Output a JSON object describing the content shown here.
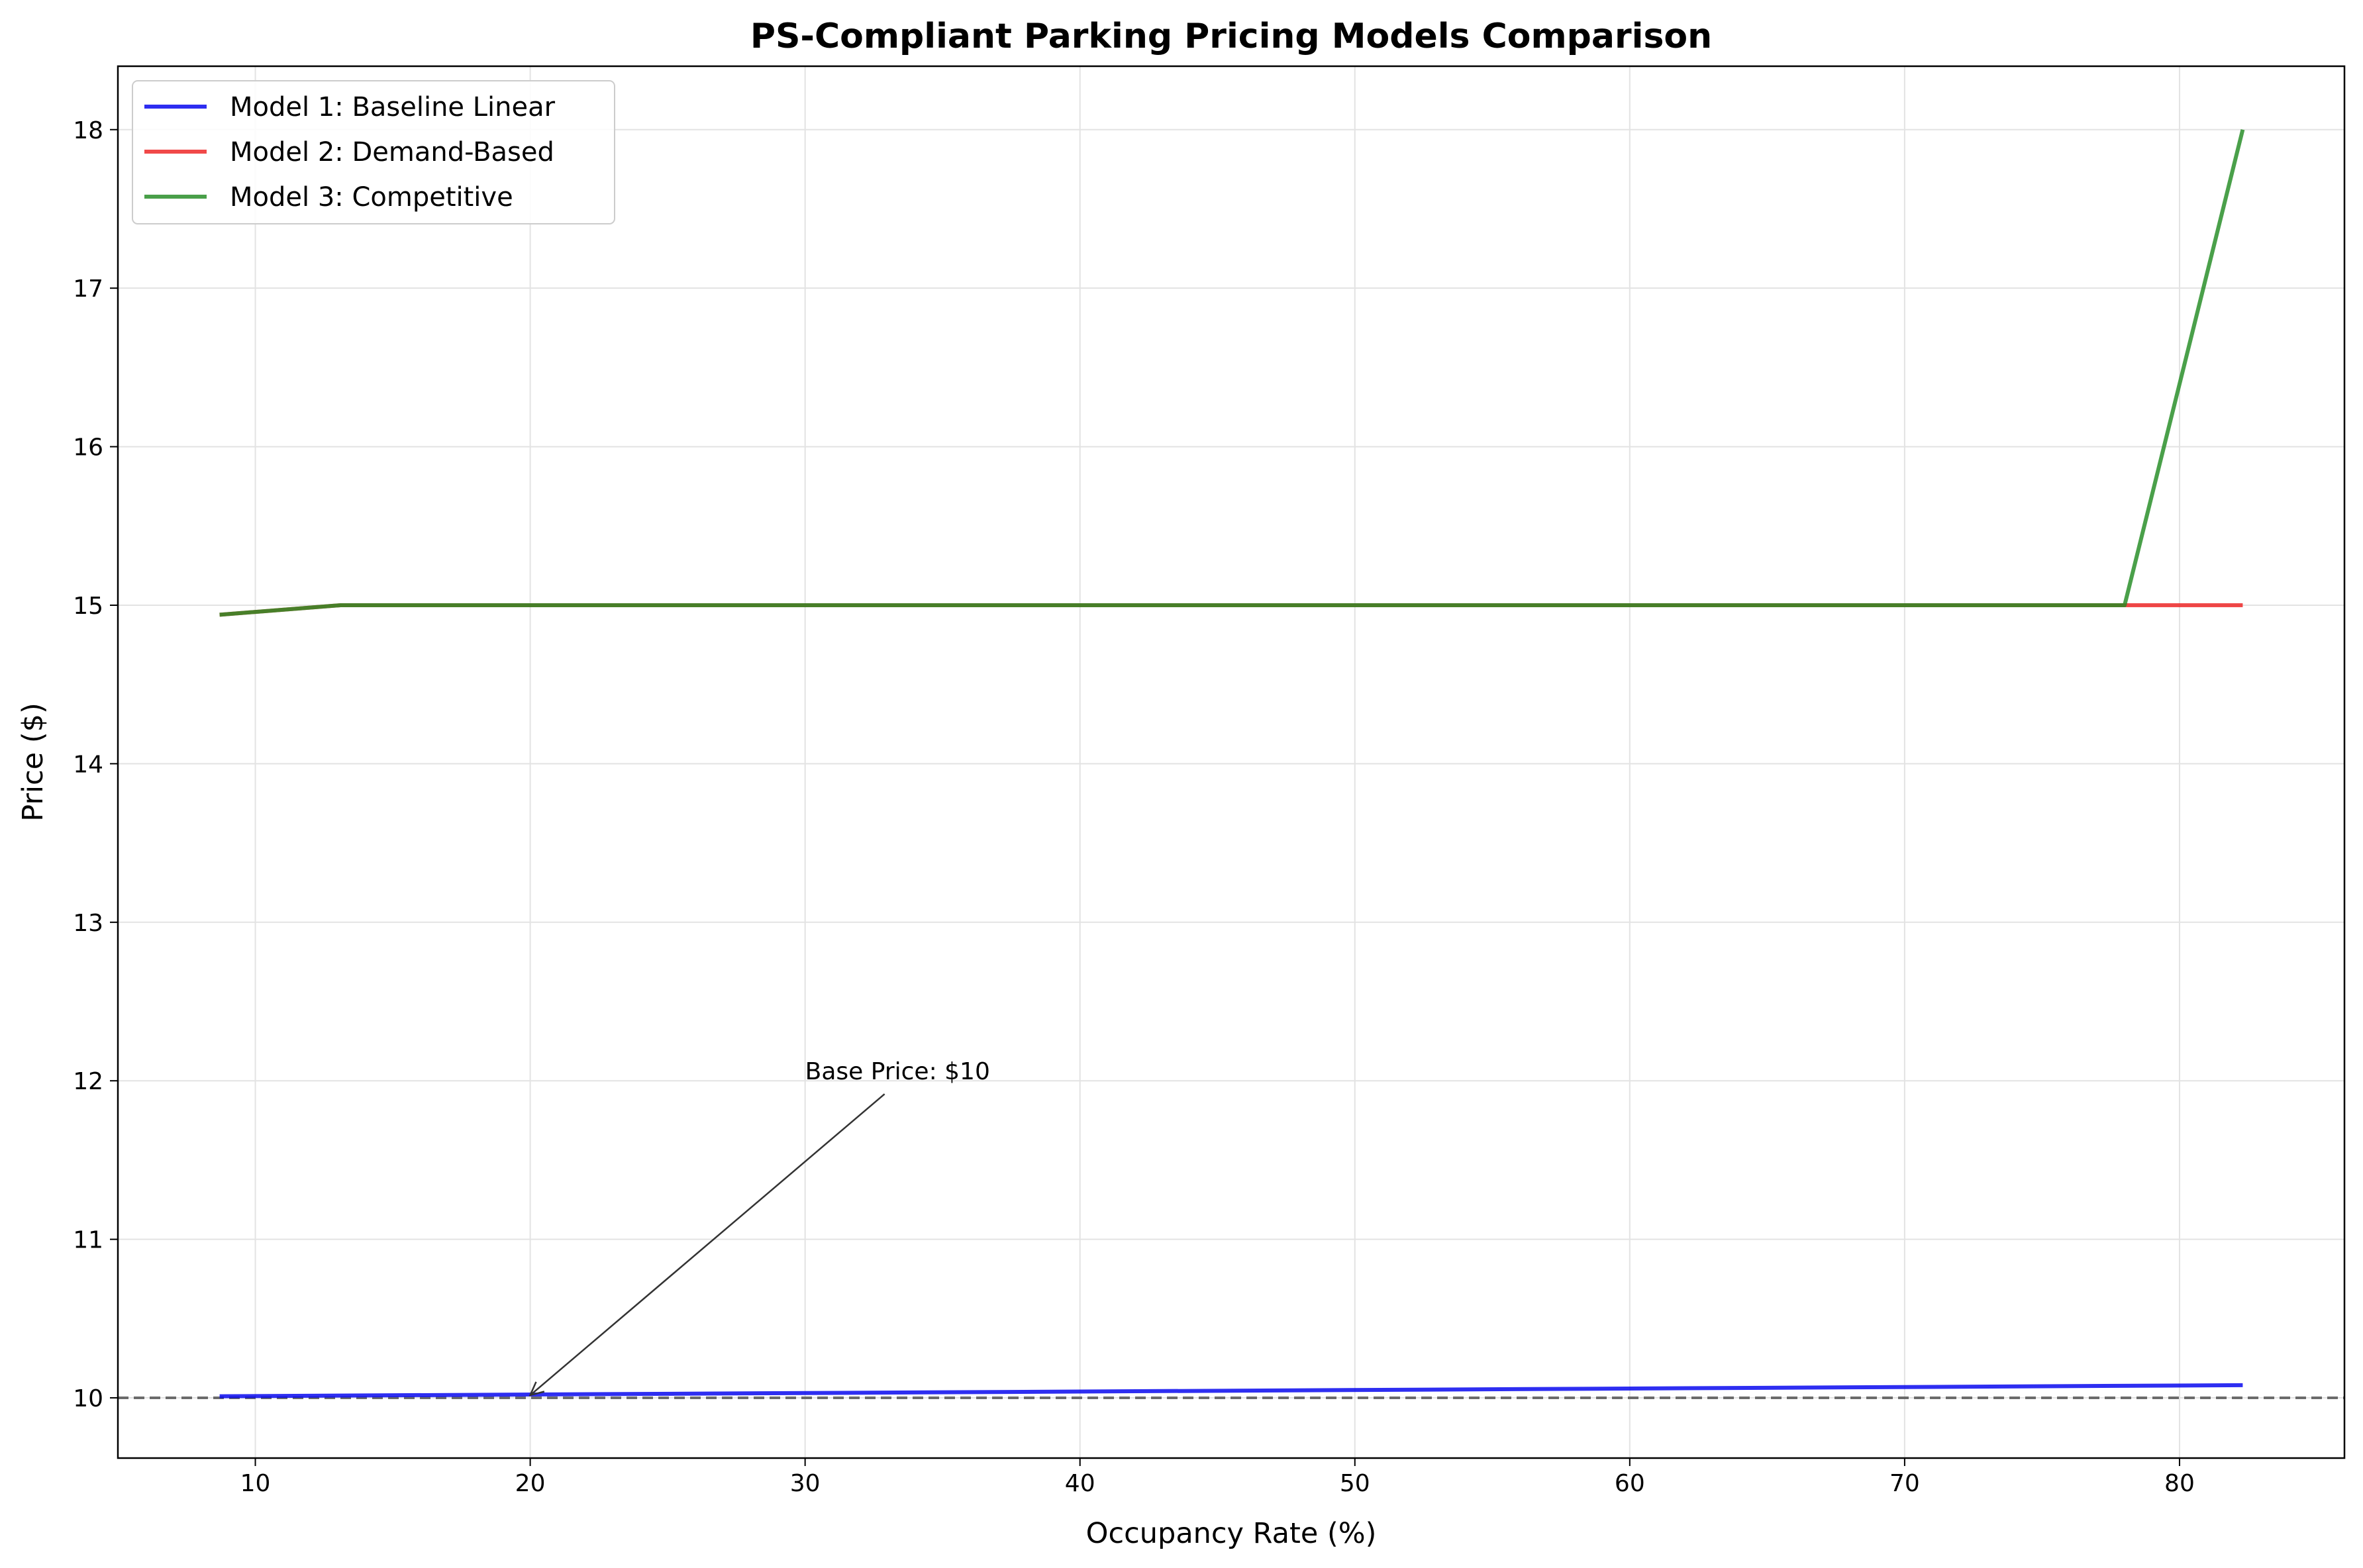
{
  "chart_data": {
    "type": "line",
    "title": "PS-Compliant Parking Pricing Models Comparison",
    "xlabel": "Occupancy Rate (%)",
    "ylabel": "Price ($)",
    "xlim": [
      5,
      86
    ],
    "ylim": [
      9.62,
      18.4
    ],
    "xticks": [
      10,
      20,
      30,
      40,
      50,
      60,
      70,
      80
    ],
    "yticks": [
      10,
      11,
      12,
      13,
      14,
      15,
      16,
      17,
      18
    ],
    "grid": true,
    "legend_position": "top-left",
    "series": [
      {
        "name": "Model 1: Baseline Linear",
        "color": "#0000ee",
        "x": [
          8.7,
          82.3
        ],
        "y": [
          10.01,
          10.08
        ]
      },
      {
        "name": "Model 2: Demand-Based",
        "color": "#ee2222",
        "x": [
          8.7,
          13.1,
          78.0,
          82.3
        ],
        "y": [
          14.94,
          15.0,
          15.0,
          15.0
        ]
      },
      {
        "name": "Model 3: Competitive",
        "color": "#228b22",
        "x": [
          8.7,
          13.1,
          78.0,
          82.3
        ],
        "y": [
          14.94,
          15.0,
          15.0,
          18.0
        ]
      }
    ],
    "reference_line": {
      "y": 10,
      "color": "#555555",
      "style": "dashed"
    },
    "annotation": {
      "text": "Base Price: $10",
      "text_x": 30,
      "text_y": 12,
      "arrow_to_x": 20,
      "arrow_to_y": 10
    }
  }
}
